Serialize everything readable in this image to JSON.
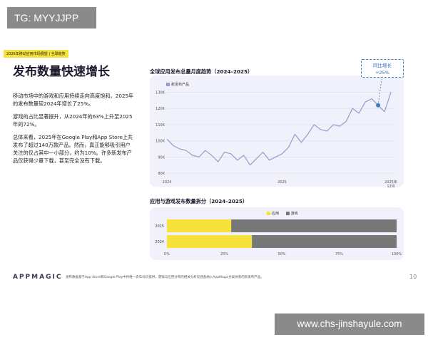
{
  "watermark_top": "TG: MYYJJPP",
  "watermark_bottom": "www.chs-jinshayule.com",
  "tag": "2026年移动应用市场展望 | 全球趋势",
  "headline": "发布数量快速增长",
  "paragraphs": [
    "移动市场中的游戏和应用持续走向高度饱和。2025年的发布数量较2024年增长了25%。",
    "游戏的占比显著提升，从2024年的63%上升至2025年的72%。",
    "总体来看，2025年在Google Play和App Store上共发布了超过140万款产品。然而，真正能够吸引用户关注的仅占其中一小部分，约为10%。许多新发布产品仅获得少量下载，甚至完全没有下载。"
  ],
  "callout": {
    "line1": "同比增长",
    "line2": "+25%"
  },
  "footer": {
    "logo": "APPMAGIC",
    "note": "发布数据基于App Store和Google Play中约唯一去年标识提供，游戏与应用分布的相关分析仅涵盖纳入AppMagic分类体系的新发布产品。",
    "page": "10"
  },
  "colors": {
    "line": "#9a9acf",
    "apps": "#f5e23b",
    "games": "#777777",
    "marker": "#3d7cc9",
    "panel": "#f0f1fa"
  },
  "chart_data": [
    {
      "type": "line",
      "title": "全球应用发布总量月度趋势（2024–2025）",
      "series": [
        {
          "name": "新发布产品",
          "values": [
            101,
            97,
            95,
            94,
            91,
            90,
            94,
            91,
            87,
            93,
            92,
            88,
            91,
            85,
            89,
            93,
            88,
            90,
            92,
            96,
            104,
            99,
            104,
            110,
            107,
            106,
            110,
            109,
            112,
            120,
            117,
            124,
            126,
            122,
            118,
            130
          ]
        }
      ],
      "x": [
        1,
        2,
        3,
        4,
        5,
        6,
        7,
        8,
        9,
        10,
        11,
        12,
        13,
        14,
        15,
        16,
        17,
        18,
        19,
        20,
        21,
        22,
        23,
        24,
        25,
        26,
        27,
        28,
        29,
        30,
        31,
        32,
        33,
        34,
        35,
        36
      ],
      "xticks": [
        {
          "x": 1,
          "label": "2024"
        },
        {
          "x": 19,
          "label": "2025"
        },
        {
          "x": 36,
          "label": "2025年\n12月"
        }
      ],
      "yticks": [
        "80K",
        "90K",
        "100K",
        "110K",
        "120K",
        "130K"
      ],
      "ylim": [
        80,
        132
      ],
      "marker_index": 33,
      "grid": true,
      "legend": "top-left"
    },
    {
      "type": "bar",
      "orientation": "horizontal-stacked-percent",
      "title": "应用与游戏发布数量拆分（2024–2025）",
      "categories": [
        "2025",
        "2024"
      ],
      "series": [
        {
          "name": "应用",
          "values": [
            28,
            37
          ]
        },
        {
          "name": "游戏",
          "values": [
            72,
            63
          ]
        }
      ],
      "xticks": [
        "0%",
        "25%",
        "50%",
        "75%",
        "100%"
      ],
      "xlim": [
        0,
        100
      ],
      "legend": "top-center"
    }
  ]
}
